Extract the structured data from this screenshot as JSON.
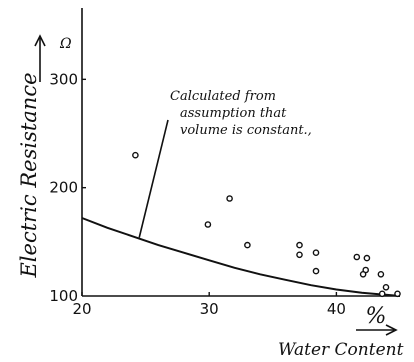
{
  "chart_data": {
    "type": "scatter",
    "xlabel": "Water Content",
    "x_unit": "%",
    "ylabel": "Electric Resistance",
    "y_unit": "Ω",
    "xlim": [
      20,
      45
    ],
    "ylim": [
      100,
      340
    ],
    "x_ticks": [
      20,
      30,
      40
    ],
    "y_ticks": [
      100,
      200,
      300
    ],
    "grid": false,
    "annotation": "Calculated from assumption that volume is constant.",
    "annotation_lines": [
      "Calculated from",
      "assumption that",
      "volume is constant.,"
    ],
    "series": [
      {
        "kind": "points",
        "marker": "open-circle",
        "points": [
          [
            24.2,
            230
          ],
          [
            31.6,
            190
          ],
          [
            29.9,
            166
          ],
          [
            33.0,
            147
          ],
          [
            37.1,
            147
          ],
          [
            37.1,
            138
          ],
          [
            38.4,
            140
          ],
          [
            38.4,
            123
          ],
          [
            41.6,
            136
          ],
          [
            42.3,
            124
          ],
          [
            42.1,
            120
          ],
          [
            42.4,
            135
          ],
          [
            43.5,
            120
          ],
          [
            43.9,
            108
          ],
          [
            44.8,
            102
          ],
          [
            43.6,
            102
          ]
        ]
      },
      {
        "kind": "curve",
        "points": [
          [
            20,
            172
          ],
          [
            22,
            163
          ],
          [
            24,
            155
          ],
          [
            26,
            147
          ],
          [
            28,
            140
          ],
          [
            30,
            133
          ],
          [
            32,
            126
          ],
          [
            34,
            120
          ],
          [
            36,
            115
          ],
          [
            38,
            110
          ],
          [
            40,
            106
          ],
          [
            42,
            103
          ],
          [
            44,
            101
          ],
          [
            45,
            100
          ]
        ]
      }
    ]
  }
}
